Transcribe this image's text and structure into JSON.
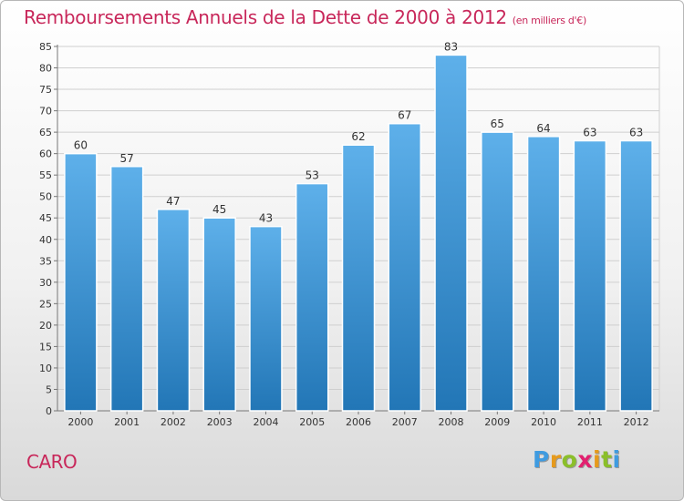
{
  "title": "Remboursements Annuels de la Dette de 2000 à 2012",
  "subtitle": "(en milliers d'€)",
  "commune": "CARO",
  "logo": {
    "letters": [
      "P",
      "r",
      "o",
      "x",
      "i",
      "t",
      "i"
    ],
    "colors": [
      "#3f9be0",
      "#e69a1c",
      "#8bbf2a",
      "#e2206f",
      "#e69a1c",
      "#8bbf2a",
      "#3f9be0"
    ]
  },
  "colors": {
    "title": "#c8275a",
    "bar_top": "#5eb0ea",
    "bar_bottom": "#2276b6"
  },
  "chart_data": {
    "type": "bar",
    "categories": [
      "2000",
      "2001",
      "2002",
      "2003",
      "2004",
      "2005",
      "2006",
      "2007",
      "2008",
      "2009",
      "2010",
      "2011",
      "2012"
    ],
    "values": [
      60,
      57,
      47,
      45,
      43,
      53,
      62,
      67,
      83,
      65,
      64,
      63,
      63
    ],
    "value_labels": [
      "60",
      "57",
      "47",
      "45",
      "43",
      "53",
      "62",
      "67",
      "83",
      "65",
      "64",
      "63",
      "63"
    ],
    "ylim": [
      0,
      85
    ],
    "yticks": [
      "0",
      "5",
      "10",
      "15",
      "20",
      "25",
      "30",
      "35",
      "40",
      "45",
      "50",
      "55",
      "60",
      "65",
      "70",
      "75",
      "80",
      "85"
    ],
    "grid": true,
    "legend": "none"
  }
}
